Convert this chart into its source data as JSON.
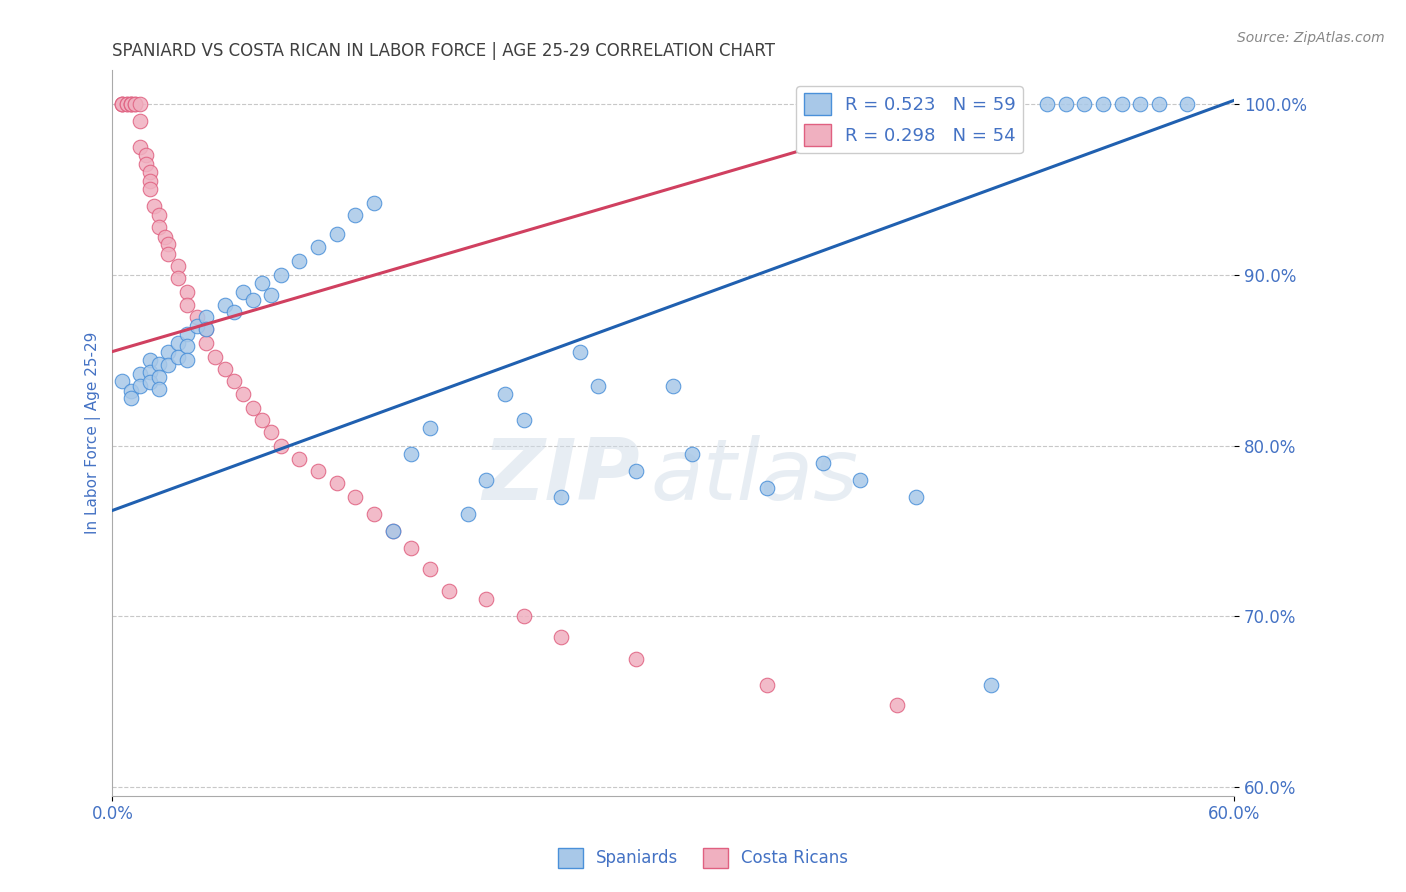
{
  "title": "SPANIARD VS COSTA RICAN IN LABOR FORCE | AGE 25-29 CORRELATION CHART",
  "source_text": "Source: ZipAtlas.com",
  "ylabel": "In Labor Force | Age 25-29",
  "x_min": 0.0,
  "x_max": 0.6,
  "y_min": 0.595,
  "y_max": 1.02,
  "x_ticks": [
    0.0,
    0.6
  ],
  "x_tick_labels": [
    "0.0%",
    "60.0%"
  ],
  "y_ticks": [
    0.6,
    0.7,
    0.8,
    0.9,
    1.0
  ],
  "y_tick_labels": [
    "60.0%",
    "70.0%",
    "80.0%",
    "90.0%",
    "100.0%"
  ],
  "grid_color": "#c8c8c8",
  "background_color": "#ffffff",
  "blue_color": "#a8c8e8",
  "blue_edge_color": "#4a90d9",
  "pink_color": "#f0b0c0",
  "pink_edge_color": "#e06080",
  "legend_blue_label": "R = 0.523   N = 59",
  "legend_pink_label": "R = 0.298   N = 54",
  "spaniards_label": "Spaniards",
  "costa_ricans_label": "Costa Ricans",
  "axis_label_color": "#4472c4",
  "title_color": "#404040",
  "watermark_zip": "ZIP",
  "watermark_atlas": "atlas",
  "blue_trend_x": [
    0.0,
    0.6
  ],
  "blue_trend_y": [
    0.762,
    1.002
  ],
  "blue_trend_color": "#2060b0",
  "pink_trend_x": [
    0.0,
    0.46
  ],
  "pink_trend_y": [
    0.855,
    1.002
  ],
  "pink_trend_color": "#d04060",
  "blue_x": [
    0.005,
    0.01,
    0.01,
    0.015,
    0.015,
    0.02,
    0.02,
    0.02,
    0.025,
    0.025,
    0.025,
    0.03,
    0.03,
    0.035,
    0.035,
    0.04,
    0.04,
    0.04,
    0.045,
    0.05,
    0.05,
    0.06,
    0.065,
    0.07,
    0.075,
    0.08,
    0.085,
    0.09,
    0.1,
    0.11,
    0.12,
    0.13,
    0.14,
    0.15,
    0.16,
    0.17,
    0.19,
    0.2,
    0.21,
    0.22,
    0.24,
    0.25,
    0.26,
    0.28,
    0.3,
    0.31,
    0.35,
    0.38,
    0.4,
    0.43,
    0.47,
    0.5,
    0.51,
    0.52,
    0.53,
    0.54,
    0.55,
    0.56,
    0.575
  ],
  "blue_y": [
    0.838,
    0.832,
    0.828,
    0.842,
    0.835,
    0.85,
    0.843,
    0.837,
    0.848,
    0.84,
    0.833,
    0.855,
    0.847,
    0.86,
    0.852,
    0.865,
    0.858,
    0.85,
    0.87,
    0.875,
    0.868,
    0.882,
    0.878,
    0.89,
    0.885,
    0.895,
    0.888,
    0.9,
    0.908,
    0.916,
    0.924,
    0.935,
    0.942,
    0.75,
    0.795,
    0.81,
    0.76,
    0.78,
    0.83,
    0.815,
    0.77,
    0.855,
    0.835,
    0.785,
    0.835,
    0.795,
    0.775,
    0.79,
    0.78,
    0.77,
    0.66,
    1.0,
    1.0,
    1.0,
    1.0,
    1.0,
    1.0,
    1.0,
    1.0
  ],
  "pink_x": [
    0.005,
    0.005,
    0.005,
    0.008,
    0.008,
    0.01,
    0.01,
    0.01,
    0.012,
    0.012,
    0.015,
    0.015,
    0.015,
    0.018,
    0.018,
    0.02,
    0.02,
    0.02,
    0.022,
    0.025,
    0.025,
    0.028,
    0.03,
    0.03,
    0.035,
    0.035,
    0.04,
    0.04,
    0.045,
    0.05,
    0.05,
    0.055,
    0.06,
    0.065,
    0.07,
    0.075,
    0.08,
    0.085,
    0.09,
    0.1,
    0.11,
    0.12,
    0.13,
    0.14,
    0.15,
    0.16,
    0.17,
    0.18,
    0.2,
    0.22,
    0.24,
    0.28,
    0.35,
    0.42
  ],
  "pink_y": [
    1.0,
    1.0,
    1.0,
    1.0,
    1.0,
    1.0,
    1.0,
    1.0,
    1.0,
    1.0,
    1.0,
    0.99,
    0.975,
    0.97,
    0.965,
    0.96,
    0.955,
    0.95,
    0.94,
    0.935,
    0.928,
    0.922,
    0.918,
    0.912,
    0.905,
    0.898,
    0.89,
    0.882,
    0.875,
    0.868,
    0.86,
    0.852,
    0.845,
    0.838,
    0.83,
    0.822,
    0.815,
    0.808,
    0.8,
    0.792,
    0.785,
    0.778,
    0.77,
    0.76,
    0.75,
    0.74,
    0.728,
    0.715,
    0.71,
    0.7,
    0.688,
    0.675,
    0.66,
    0.648
  ]
}
